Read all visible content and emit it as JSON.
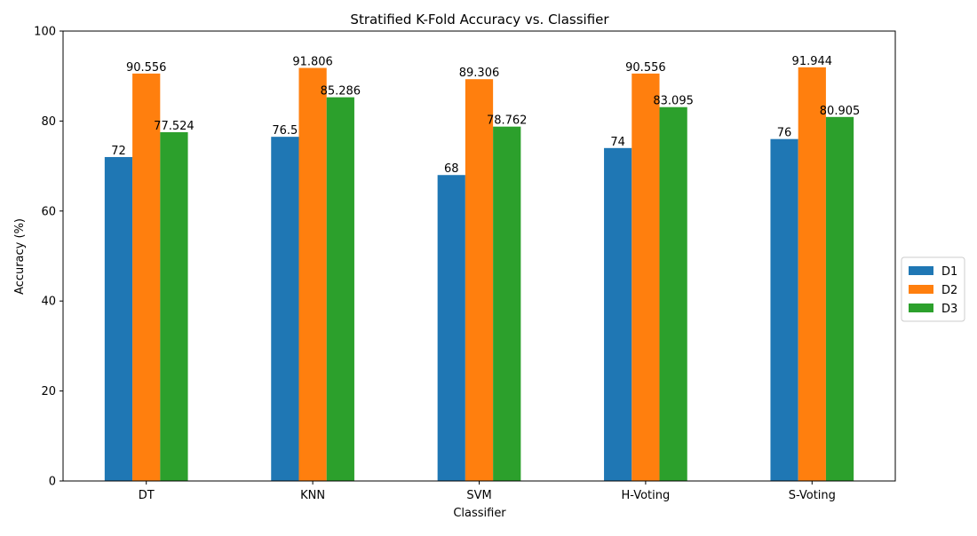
{
  "chart_data": {
    "type": "bar",
    "title": "Stratified K-Fold Accuracy vs. Classifier",
    "xlabel": "Classifier",
    "ylabel": "Accuracy (%)",
    "categories": [
      "DT",
      "KNN",
      "SVM",
      "H-Voting",
      "S-Voting"
    ],
    "series": [
      {
        "name": "D1",
        "color": "#1f77b4",
        "values": [
          72,
          76.5,
          68,
          74,
          76
        ],
        "labels": [
          "72",
          "76.5",
          "68",
          "74",
          "76"
        ]
      },
      {
        "name": "D2",
        "color": "#ff7f0e",
        "values": [
          90.556,
          91.806,
          89.306,
          90.556,
          91.944
        ],
        "labels": [
          "90.556",
          "91.806",
          "89.306",
          "90.556",
          "91.944"
        ]
      },
      {
        "name": "D3",
        "color": "#2ca02c",
        "values": [
          77.524,
          85.286,
          78.762,
          83.095,
          80.905
        ],
        "labels": [
          "77.524",
          "85.286",
          "78.762",
          "83.095",
          "80.905"
        ]
      }
    ],
    "ylim": [
      0,
      100
    ],
    "yticks": [
      0,
      20,
      40,
      60,
      80,
      100
    ],
    "grid": false,
    "legend_position": "center-right"
  }
}
